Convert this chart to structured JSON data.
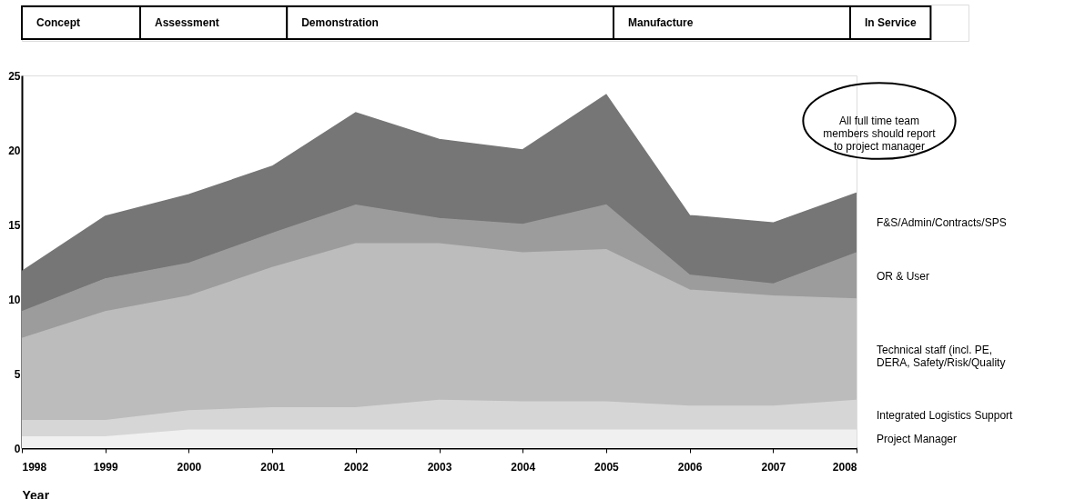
{
  "chart_data": {
    "type": "area",
    "stacked": true,
    "x": [
      1998,
      1999,
      2000,
      2001,
      2002,
      2003,
      2004,
      2005,
      2006,
      2007,
      2008
    ],
    "xlabel": "Year",
    "xlim": [
      1998,
      2008
    ],
    "xticks": [
      1998,
      1999,
      2000,
      2001,
      2002,
      2003,
      2004,
      2005,
      2006,
      2007,
      2008
    ],
    "ylim": [
      0,
      25
    ],
    "yticks": [
      0,
      5,
      10,
      15,
      20,
      25
    ],
    "grid": false,
    "series": [
      {
        "name": "Project Manager",
        "color": "#f0f0f0",
        "values": [
          0.75,
          0.75,
          1.2,
          1.2,
          1.2,
          1.2,
          1.2,
          1.2,
          1.2,
          1.2,
          1.2
        ]
      },
      {
        "name": "Integrated Logistics Support",
        "color": "#d6d6d6",
        "values": [
          1.1,
          1.1,
          1.3,
          1.5,
          1.5,
          2.0,
          1.9,
          1.9,
          1.6,
          1.6,
          2.0
        ]
      },
      {
        "name": "Technical staff (incl. PE,\nDERA, Safety/Risk/Quality",
        "color": "#bcbcbc",
        "values": [
          5.5,
          7.3,
          7.7,
          9.4,
          11.0,
          10.5,
          10.0,
          10.2,
          7.8,
          7.4,
          6.8
        ]
      },
      {
        "name": "OR & User",
        "color": "#9c9c9c",
        "values": [
          1.8,
          2.2,
          2.2,
          2.3,
          2.6,
          1.7,
          1.9,
          3.0,
          1.0,
          0.8,
          3.1
        ]
      },
      {
        "name": "F&S/Admin/Contracts/SPS",
        "color": "#767676",
        "values": [
          2.7,
          4.2,
          4.6,
          4.5,
          6.2,
          5.3,
          5.0,
          7.4,
          4.0,
          4.1,
          4.0
        ]
      }
    ],
    "annotations": [
      "Concept",
      "Assessment",
      "Demonstration",
      "Manufacture",
      "In Service",
      "All full time team\nmembers should report\nto project manager"
    ]
  }
}
